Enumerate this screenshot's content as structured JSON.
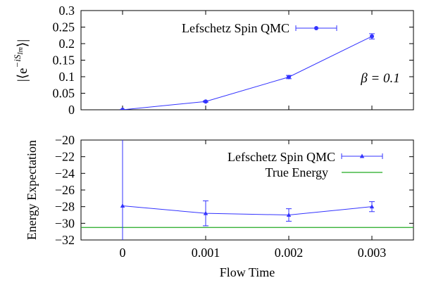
{
  "chart_data": [
    {
      "type": "line",
      "ylabel": "|⟨e^{−iS_Im}⟩|",
      "ylim": [
        0,
        0.3
      ],
      "yticks": [
        "0",
        "0.05",
        "0.1",
        "0.15",
        "0.2",
        "0.25",
        "0.3"
      ],
      "xlim": [
        -0.0005,
        0.0035
      ],
      "annotation": "β = 0.1",
      "legend_position": "top-left",
      "series": [
        {
          "name": "Lefschetz Spin QMC",
          "marker": "circle",
          "color": "#3333ff",
          "x": [
            0,
            0.001,
            0.002,
            0.003
          ],
          "y": [
            0.0,
            0.025,
            0.099,
            0.222
          ],
          "yerr": [
            0.001,
            0.002,
            0.005,
            0.008
          ]
        }
      ]
    },
    {
      "type": "line",
      "xlabel": "Flow Time",
      "ylabel": "Energy Expectation",
      "ylim": [
        -32,
        -20
      ],
      "yticks": [
        "−32",
        "−30",
        "−28",
        "−26",
        "−24",
        "−22",
        "−20"
      ],
      "xlim": [
        -0.0005,
        0.0035
      ],
      "xticks": [
        "0",
        "0.001",
        "0.002",
        "0.003"
      ],
      "legend_position": "top-right",
      "series": [
        {
          "name": "Lefschetz Spin QMC",
          "marker": "triangle",
          "color": "#3333ff",
          "x": [
            0,
            0.001,
            0.002,
            0.003
          ],
          "y": [
            -27.9,
            -28.8,
            -29.0,
            -28.0
          ],
          "yerr": [
            10.0,
            1.5,
            0.75,
            0.6
          ]
        },
        {
          "name": "True Energy",
          "type": "hline",
          "color": "#22aa22",
          "y": -30.5
        }
      ]
    }
  ]
}
